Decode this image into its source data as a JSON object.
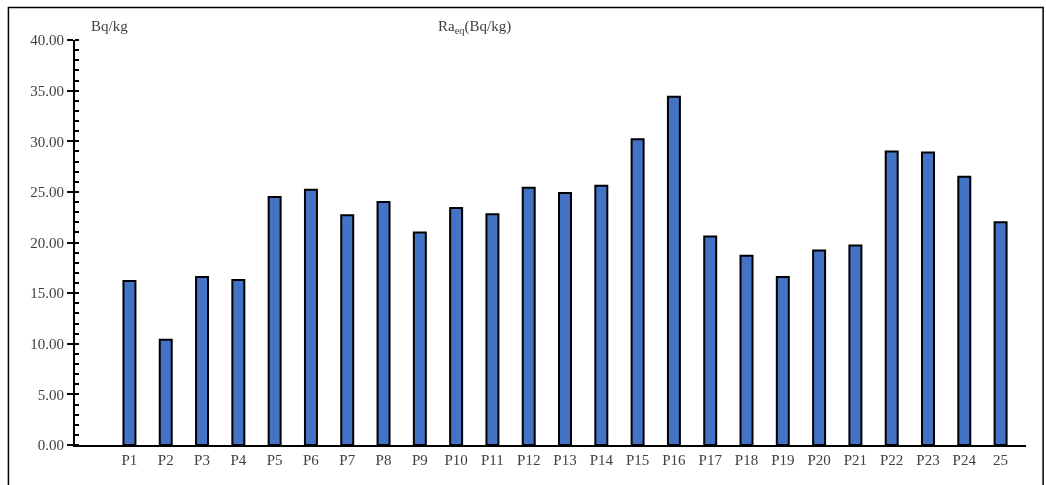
{
  "chart_data": {
    "type": "bar",
    "title": "Ra$_{eq}$(Bq/kg)",
    "ylabel": "Bq/kg",
    "categories": [
      "P1",
      "P2",
      "P3",
      "P4",
      "P5",
      "P6",
      "P7",
      "P8",
      "P9",
      "P10",
      "P11",
      "P12",
      "P13",
      "P14",
      "P15",
      "P16",
      "P17",
      "P18",
      "P19",
      "P20",
      "P21",
      "P22",
      "P23",
      "P24",
      "25"
    ],
    "values": [
      16.2,
      10.4,
      16.6,
      16.3,
      24.5,
      25.2,
      22.7,
      24.0,
      21.0,
      23.4,
      22.8,
      25.4,
      24.9,
      25.6,
      30.2,
      34.4,
      20.6,
      18.7,
      16.6,
      19.2,
      19.7,
      29.0,
      28.9,
      26.5,
      22.0
    ],
    "color": "#4472c4",
    "ylim": [
      0,
      40
    ],
    "yticks": [
      {
        "value": 0,
        "label": "0.00"
      },
      {
        "value": 5,
        "label": "5.00"
      },
      {
        "value": 10,
        "label": "10.00"
      },
      {
        "value": 15,
        "label": "15.00"
      },
      {
        "value": 20,
        "label": "20.00"
      },
      {
        "value": 25,
        "label": "25.00"
      },
      {
        "value": 30,
        "label": "30.00"
      },
      {
        "value": 35,
        "label": "35.00"
      },
      {
        "value": 40,
        "label": "40.00"
      }
    ],
    "legend": false
  }
}
